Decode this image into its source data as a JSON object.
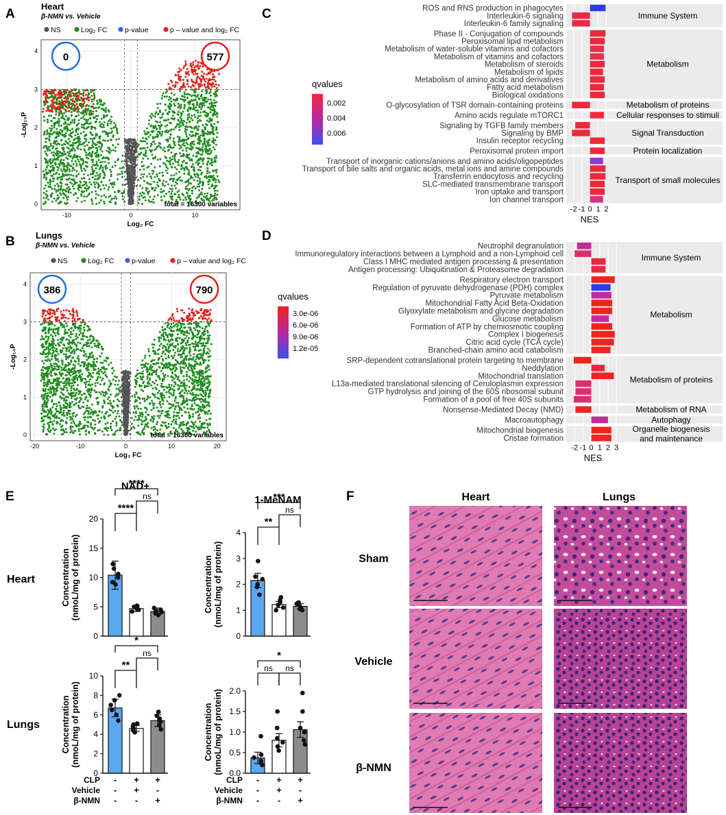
{
  "panels": {
    "a": "A",
    "b": "B",
    "c": "C",
    "d": "D",
    "e": "E",
    "f": "F"
  },
  "volcano": [
    {
      "id": "heart",
      "title": "Heart",
      "subtitle": "β-NMN vs. Vehicle",
      "legend": [
        "NS",
        "Log₂ FC",
        "p-value",
        "p – value and log₂ FC"
      ],
      "legend_colors": [
        "#555555",
        "#1e8c1e",
        "#3a5fd9",
        "#e0201a"
      ],
      "count_left": "0",
      "count_right": "577",
      "count_left_color": "#1e6fd9",
      "count_right_color": "#e0201a",
      "total": "total = 16300 variables",
      "xlabel": "Log₂ FC",
      "ylabel": "-Log₁₀P",
      "xlim": [
        -14,
        17
      ],
      "ylim": [
        -0.15,
        4.3
      ],
      "xticks": [
        -10,
        0,
        10
      ],
      "yticks": [
        0,
        1,
        2,
        3,
        4
      ],
      "fc_cut": 1,
      "p_cut": 3,
      "x_half": 13.5,
      "y_max": 3.75,
      "green_scale": 1.0
    },
    {
      "id": "lungs",
      "title": "Lungs",
      "subtitle": "β-NMN vs. Vehicle",
      "legend": [
        "NS",
        "Log₂ FC",
        "p-value",
        "p – value and log₂ FC"
      ],
      "legend_colors": [
        "#555555",
        "#1e8c1e",
        "#3a5fd9",
        "#e0201a"
      ],
      "count_left": "386",
      "count_right": "790",
      "count_left_color": "#1e6fd9",
      "count_right_color": "#e0201a",
      "total": "total = 16300 variables",
      "xlabel": "Log₂ FC",
      "ylabel": "-Log₁₀P",
      "xlim": [
        -21,
        22
      ],
      "ylim": [
        -0.15,
        4.3
      ],
      "xticks": [
        -20,
        -10,
        0,
        10,
        20
      ],
      "yticks": [
        0,
        1,
        2,
        3,
        4
      ],
      "fc_cut": 1,
      "p_cut": 3,
      "x_half": 18.5,
      "y_max": 3.35,
      "green_scale": 1.5
    }
  ],
  "gsea": [
    {
      "id": "C",
      "legend_title": "qvalues",
      "legend_ticks": [
        "0.002",
        "0.004",
        "0.006"
      ],
      "xticks": [
        -2,
        -1,
        0,
        1,
        2
      ],
      "xlim": [
        -2.9,
        2.8
      ],
      "xlabel": "NES",
      "rows": [
        {
          "label": "ROS and RNS production in phagocytes",
          "nes": 1.9,
          "color": "#2a3ce8",
          "group": "Immune System"
        },
        {
          "label": "Interleukin-6 signaling",
          "nes": -2.2,
          "color": "#e82a45",
          "group": "Immune System"
        },
        {
          "label": "Interleukin-6 family signaling",
          "nes": -2.2,
          "color": "#e82a45",
          "group": "Immune System"
        },
        {
          "label": "Phase II - Conjugation of compounds",
          "nes": 1.9,
          "color": "#f0283a",
          "group": "Metabolism"
        },
        {
          "label": "Peroxisomal lipid metabolism",
          "nes": 1.8,
          "color": "#f0283a",
          "group": "Metabolism"
        },
        {
          "label": "Metabolism of water-soluble vitamins and cofactors",
          "nes": 1.7,
          "color": "#e83050",
          "group": "Metabolism"
        },
        {
          "label": "Metabolism of vitamins and cofactors",
          "nes": 1.7,
          "color": "#e83050",
          "group": "Metabolism"
        },
        {
          "label": "Metabolism of steroids",
          "nes": 1.8,
          "color": "#f0283a",
          "group": "Metabolism"
        },
        {
          "label": "Metabolism of lipids",
          "nes": 1.6,
          "color": "#f0283a",
          "group": "Metabolism"
        },
        {
          "label": "Metabolism of amino acids and derivatives",
          "nes": 1.8,
          "color": "#f0283a",
          "group": "Metabolism"
        },
        {
          "label": "Fatty acid metabolism",
          "nes": 1.7,
          "color": "#f0283a",
          "group": "Metabolism"
        },
        {
          "label": "Biological oxidations",
          "nes": 1.8,
          "color": "#f0283a",
          "group": "Metabolism"
        },
        {
          "label": "O-glycosylation of TSR domain-containing proteins",
          "nes": -2.2,
          "color": "#f0283a",
          "group": "Metabolism of proteins"
        },
        {
          "label": "Amino acids regulate mTORC1",
          "nes": 1.7,
          "color": "#f0283a",
          "group": "Cellular responses to stimuli"
        },
        {
          "label": "Signaling by TGFB family members",
          "nes": -1.8,
          "color": "#f0283a",
          "group": "Signal Transduction"
        },
        {
          "label": "Signaling by BMP",
          "nes": -2.2,
          "color": "#f0283a",
          "group": "Signal Transduction"
        },
        {
          "label": "Insulin receptor recycling",
          "nes": 1.8,
          "color": "#f0283a",
          "group": "Signal Transduction"
        },
        {
          "label": "Peroxisomal protein import",
          "nes": 1.8,
          "color": "#f0283a",
          "group": "Protein localization"
        },
        {
          "label": "Transport of inorganic cations/anions and amino acids/oligopeptides",
          "nes": 1.6,
          "color": "#8a3ad8",
          "group": "Transport of small molecules"
        },
        {
          "label": "Transport of bile salts and organic acids, metal ions and amine compounds",
          "nes": 1.9,
          "color": "#f0283a",
          "group": "Transport of small molecules"
        },
        {
          "label": "Transferrin endocytosis and recycling",
          "nes": 1.9,
          "color": "#f0283a",
          "group": "Transport of small molecules"
        },
        {
          "label": "SLC-mediated transmembrane transport",
          "nes": 1.8,
          "color": "#f0283a",
          "group": "Transport of small molecules"
        },
        {
          "label": "Iron uptake and transport",
          "nes": 1.8,
          "color": "#f0283a",
          "group": "Transport of small molecules"
        },
        {
          "label": "Ion channel transport",
          "nes": 1.6,
          "color": "#d8307a",
          "group": "Transport of small molecules"
        }
      ]
    },
    {
      "id": "D",
      "legend_title": "qvalues",
      "legend_ticks": [
        "3.0e-06",
        "6.0e-06",
        "9.0e-06",
        "1.2e-05"
      ],
      "xticks": [
        -2,
        -1,
        0,
        1,
        2,
        3
      ],
      "xlim": [
        -3.0,
        3.4
      ],
      "xlabel": "NES",
      "rows": [
        {
          "label": "Neutrophil degranulation",
          "nes": -1.7,
          "color": "#c42a9a",
          "group": "Immune System"
        },
        {
          "label": "Immunoregulatory interactions between a Lymphoid and a non-Lymphoid cell",
          "nes": -2.0,
          "color": "#d8306e",
          "group": "Immune System"
        },
        {
          "label": "Class I MHC mediated antigen processing & presentation",
          "nes": 1.7,
          "color": "#e8283e",
          "group": "Immune System"
        },
        {
          "label": "Antigen processing: Ubiquitination & Proteasome degradation",
          "nes": 1.7,
          "color": "#e8283e",
          "group": "Immune System"
        },
        {
          "label": "Respiratory electron transport",
          "nes": 2.8,
          "color": "#f0241e",
          "group": "Metabolism"
        },
        {
          "label": "Regulation of pyruvate dehydrogenase (PDH) complex",
          "nes": 2.3,
          "color": "#2a3ce8",
          "group": "Metabolism"
        },
        {
          "label": "Pyruvate metabolism",
          "nes": 2.4,
          "color": "#c42a9a",
          "group": "Metabolism"
        },
        {
          "label": "Mitochondrial Fatty Acid Beta-Oxidation",
          "nes": 2.5,
          "color": "#f0241e",
          "group": "Metabolism"
        },
        {
          "label": "Glyoxylate metabolism and glycine degradation",
          "nes": 2.5,
          "color": "#f0241e",
          "group": "Metabolism"
        },
        {
          "label": "Glucose metabolism",
          "nes": 2.1,
          "color": "#c42a9a",
          "group": "Metabolism"
        },
        {
          "label": "Formation of ATP by chemiosmotic coupling",
          "nes": 2.5,
          "color": "#f0241e",
          "group": "Metabolism"
        },
        {
          "label": "Complex I biogenesis",
          "nes": 2.8,
          "color": "#f0241e",
          "group": "Metabolism"
        },
        {
          "label": "Citric acid cycle (TCA cycle)",
          "nes": 2.7,
          "color": "#f0241e",
          "group": "Metabolism"
        },
        {
          "label": "Branched-chain amino acid catabolism",
          "nes": 2.3,
          "color": "#f0241e",
          "group": "Metabolism"
        },
        {
          "label": "SRP-dependent cotranslational protein targeting to membrane",
          "nes": -2.1,
          "color": "#f0241e",
          "group": "Metabolism of proteins"
        },
        {
          "label": "Neddylation",
          "nes": 1.6,
          "color": "#e8283e",
          "group": "Metabolism of proteins"
        },
        {
          "label": "Mitochondrial translation",
          "nes": 2.7,
          "color": "#f0241e",
          "group": "Metabolism of proteins"
        },
        {
          "label": "L13a-mediated translational silencing of Ceruloplasmin expression",
          "nes": -1.9,
          "color": "#d8306e",
          "group": "Metabolism of proteins"
        },
        {
          "label": "GTP hydrolysis and joining of the 60S ribosomal subunit",
          "nes": -1.9,
          "color": "#d8306e",
          "group": "Metabolism of proteins"
        },
        {
          "label": "Formation of a pool of free 40S subunits",
          "nes": -2.1,
          "color": "#d8306e",
          "group": "Metabolism of proteins"
        },
        {
          "label": "Nonsense-Mediated Decay (NMD)",
          "nes": -1.9,
          "color": "#f0241e",
          "group": "Metabolism of RNA"
        },
        {
          "label": "Macroautophagy",
          "nes": 2.0,
          "color": "#c42a9a",
          "group": "Autophagy"
        },
        {
          "label": "Mitochondrial biogenesis",
          "nes": 2.4,
          "color": "#f0241e",
          "group": "Organelle biogenesis and maintenance"
        },
        {
          "label": "Cristae formation",
          "nes": 2.4,
          "color": "#f0241e",
          "group": "Organelle biogenesis and maintenance"
        }
      ]
    }
  ],
  "bars": {
    "row_labels": [
      "Heart",
      "Lungs"
    ],
    "ylabel": [
      "Concentration",
      "(nmoL/mg of protein)"
    ],
    "group_colors": [
      "#5aa8f0",
      "#ffffff",
      "#8c8c8c"
    ],
    "condition_labels": [
      "CLP",
      "Vehicle",
      "β-NMN"
    ],
    "condition_signs": [
      [
        "-",
        "+",
        "+"
      ],
      [
        "-",
        "+",
        "-"
      ],
      [
        "-",
        "-",
        "+"
      ]
    ],
    "plots": [
      {
        "title": "NAD+",
        "ylim": [
          0,
          20
        ],
        "yticks": [
          0,
          5,
          10,
          15,
          20
        ],
        "means": [
          10.4,
          4.7,
          4.2
        ],
        "errs": [
          2.4,
          0.5,
          0.6
        ],
        "points": [
          [
            8.8,
            9.2,
            10.0,
            10.6,
            11.5,
            12.3
          ],
          [
            4.2,
            4.5,
            4.7,
            4.9,
            5.0,
            5.2
          ],
          [
            3.6,
            3.9,
            4.1,
            4.3,
            4.5,
            4.8
          ]
        ],
        "sig": [
          {
            "from": 0,
            "to": 2,
            "label": "****",
            "level": 2
          },
          {
            "from": 1,
            "to": 2,
            "label": "ns",
            "level": 1
          },
          {
            "from": 0,
            "to": 1,
            "label": "****",
            "level": 0
          }
        ]
      },
      {
        "title": "1-MeNAM",
        "ylim": [
          0,
          4
        ],
        "yticks": [
          0,
          1,
          2,
          3,
          4
        ],
        "means": [
          2.15,
          1.22,
          1.15
        ],
        "errs": [
          0.28,
          0.12,
          0.1
        ],
        "points": [
          [
            1.6,
            1.9,
            2.0,
            2.2,
            2.3,
            2.9
          ],
          [
            1.0,
            1.1,
            1.2,
            1.3,
            1.4,
            1.5
          ],
          [
            1.0,
            1.05,
            1.1,
            1.2,
            1.25,
            1.3
          ]
        ],
        "sig": [
          {
            "from": 0,
            "to": 2,
            "label": "***",
            "level": 2
          },
          {
            "from": 1,
            "to": 2,
            "label": "ns",
            "level": 1
          },
          {
            "from": 0,
            "to": 1,
            "label": "**",
            "level": 0
          }
        ]
      },
      {
        "title": "",
        "ylim": [
          0,
          10
        ],
        "yticks": [
          0,
          2,
          4,
          6,
          8,
          10
        ],
        "means": [
          6.7,
          4.6,
          5.4
        ],
        "errs": [
          0.9,
          0.3,
          0.6
        ],
        "points": [
          [
            5.4,
            6.0,
            6.5,
            7.0,
            7.5,
            8.0
          ],
          [
            4.2,
            4.4,
            4.6,
            4.8,
            5.0,
            5.1
          ],
          [
            4.5,
            4.9,
            5.3,
            5.6,
            5.9,
            6.3
          ]
        ],
        "sig": [
          {
            "from": 0,
            "to": 2,
            "label": "*",
            "level": 2
          },
          {
            "from": 1,
            "to": 2,
            "label": "ns",
            "level": 1
          },
          {
            "from": 0,
            "to": 1,
            "label": "**",
            "level": 0
          }
        ]
      },
      {
        "title": "",
        "ylim": [
          0,
          2.0
        ],
        "yticks": [
          0,
          0.5,
          1.0,
          1.5,
          2.0
        ],
        "means": [
          0.37,
          0.8,
          1.06
        ],
        "errs": [
          0.14,
          0.16,
          0.19
        ],
        "points": [
          [
            0.2,
            0.25,
            0.3,
            0.38,
            0.45,
            0.9
          ],
          [
            0.55,
            0.65,
            0.75,
            0.85,
            1.1,
            1.5
          ],
          [
            0.7,
            0.8,
            1.0,
            1.1,
            1.5,
            1.95
          ]
        ],
        "sig": [
          {
            "from": 0,
            "to": 2,
            "label": "*",
            "level": 2
          },
          {
            "from": 1,
            "to": 2,
            "label": "ns",
            "level": 1
          },
          {
            "from": 0,
            "to": 1,
            "label": "ns",
            "level": 1
          }
        ]
      }
    ]
  },
  "histology": {
    "col_labels": [
      "Heart",
      "Lungs"
    ],
    "row_labels": [
      "Sham",
      "Vehicle",
      "β-NMN"
    ]
  }
}
